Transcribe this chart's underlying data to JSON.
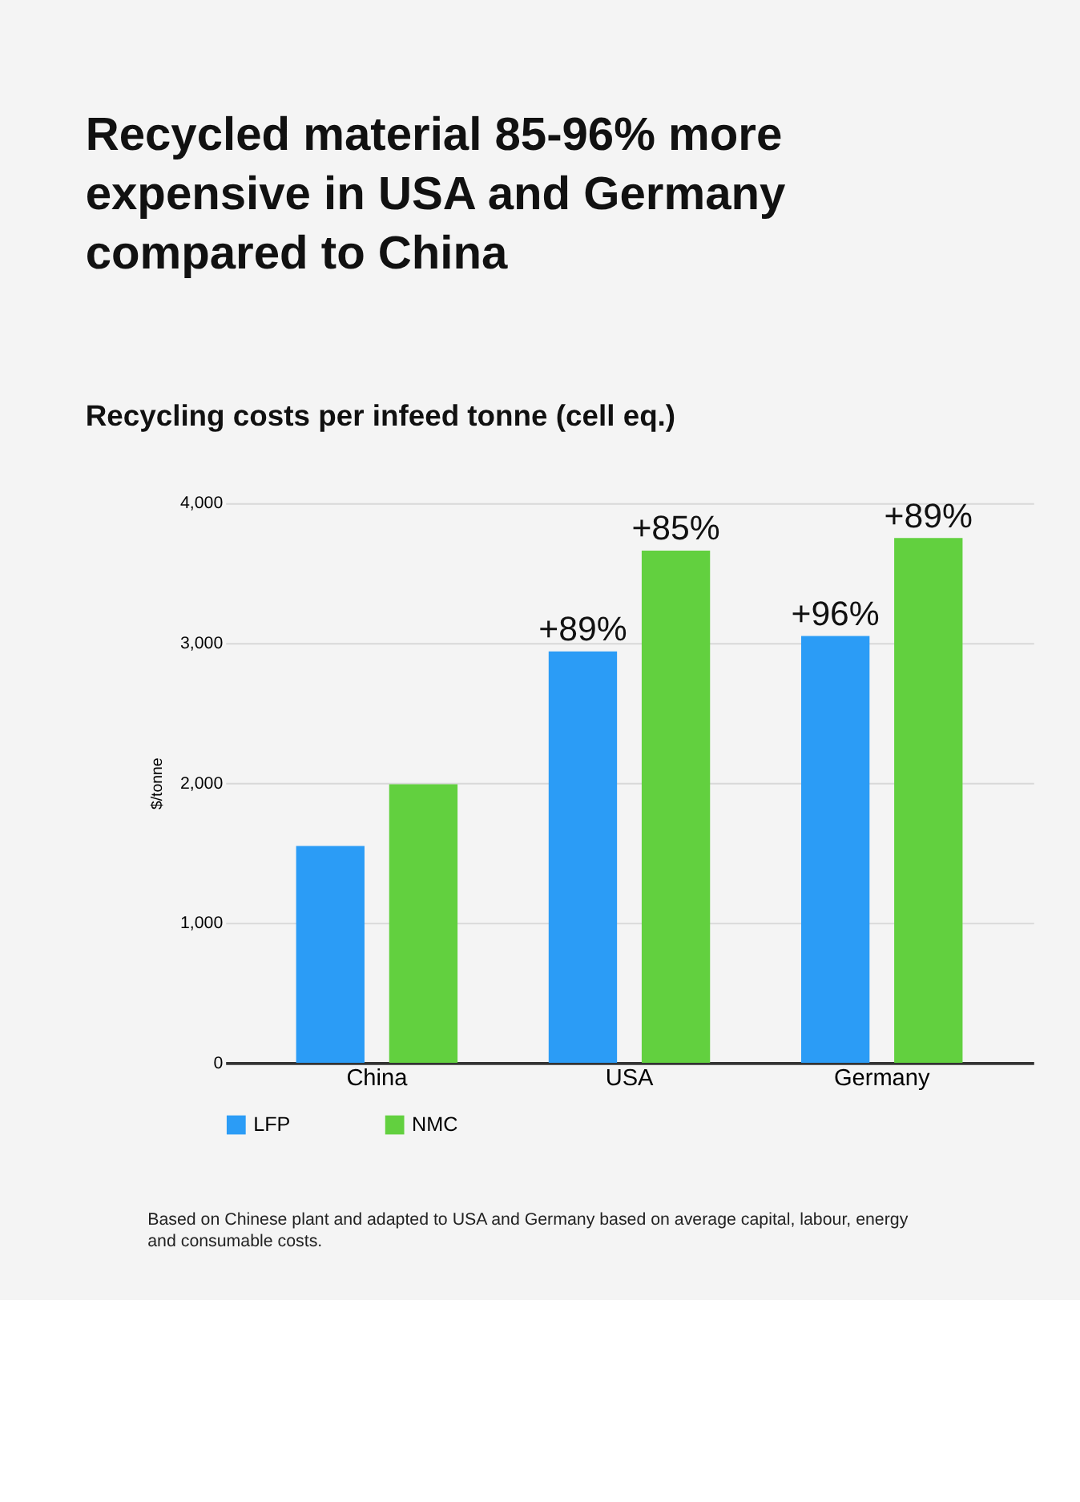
{
  "chart_data": {
    "type": "bar",
    "title": "Recycled material 85-96% more expensive in USA and Germany compared to China",
    "subtitle": "Recycling costs per infeed tonne (cell eq.)",
    "ylabel": "$/tonne",
    "categories": [
      "China",
      "USA",
      "Germany"
    ],
    "series": [
      {
        "name": "LFP",
        "color": "#2b9cf6",
        "values": [
          1550,
          2940,
          3050
        ]
      },
      {
        "name": "NMC",
        "color": "#62d03f",
        "values": [
          1990,
          3660,
          3750
        ]
      }
    ],
    "ylim": [
      0,
      4000
    ],
    "yticks": [
      {
        "value": 0,
        "label": "0"
      },
      {
        "value": 1000,
        "label": "1,000"
      },
      {
        "value": 2000,
        "label": "2,000"
      },
      {
        "value": 3000,
        "label": "3,000"
      },
      {
        "value": 4000,
        "label": "4,000"
      }
    ],
    "grid": "y",
    "legend": "bottom",
    "annotations": [
      "+89%",
      "+85%",
      "+96%",
      "+89%",
      "Based on Chinese plant and adapted to USA and Germany based on average capital, labour, energy and consumable costs."
    ]
  }
}
